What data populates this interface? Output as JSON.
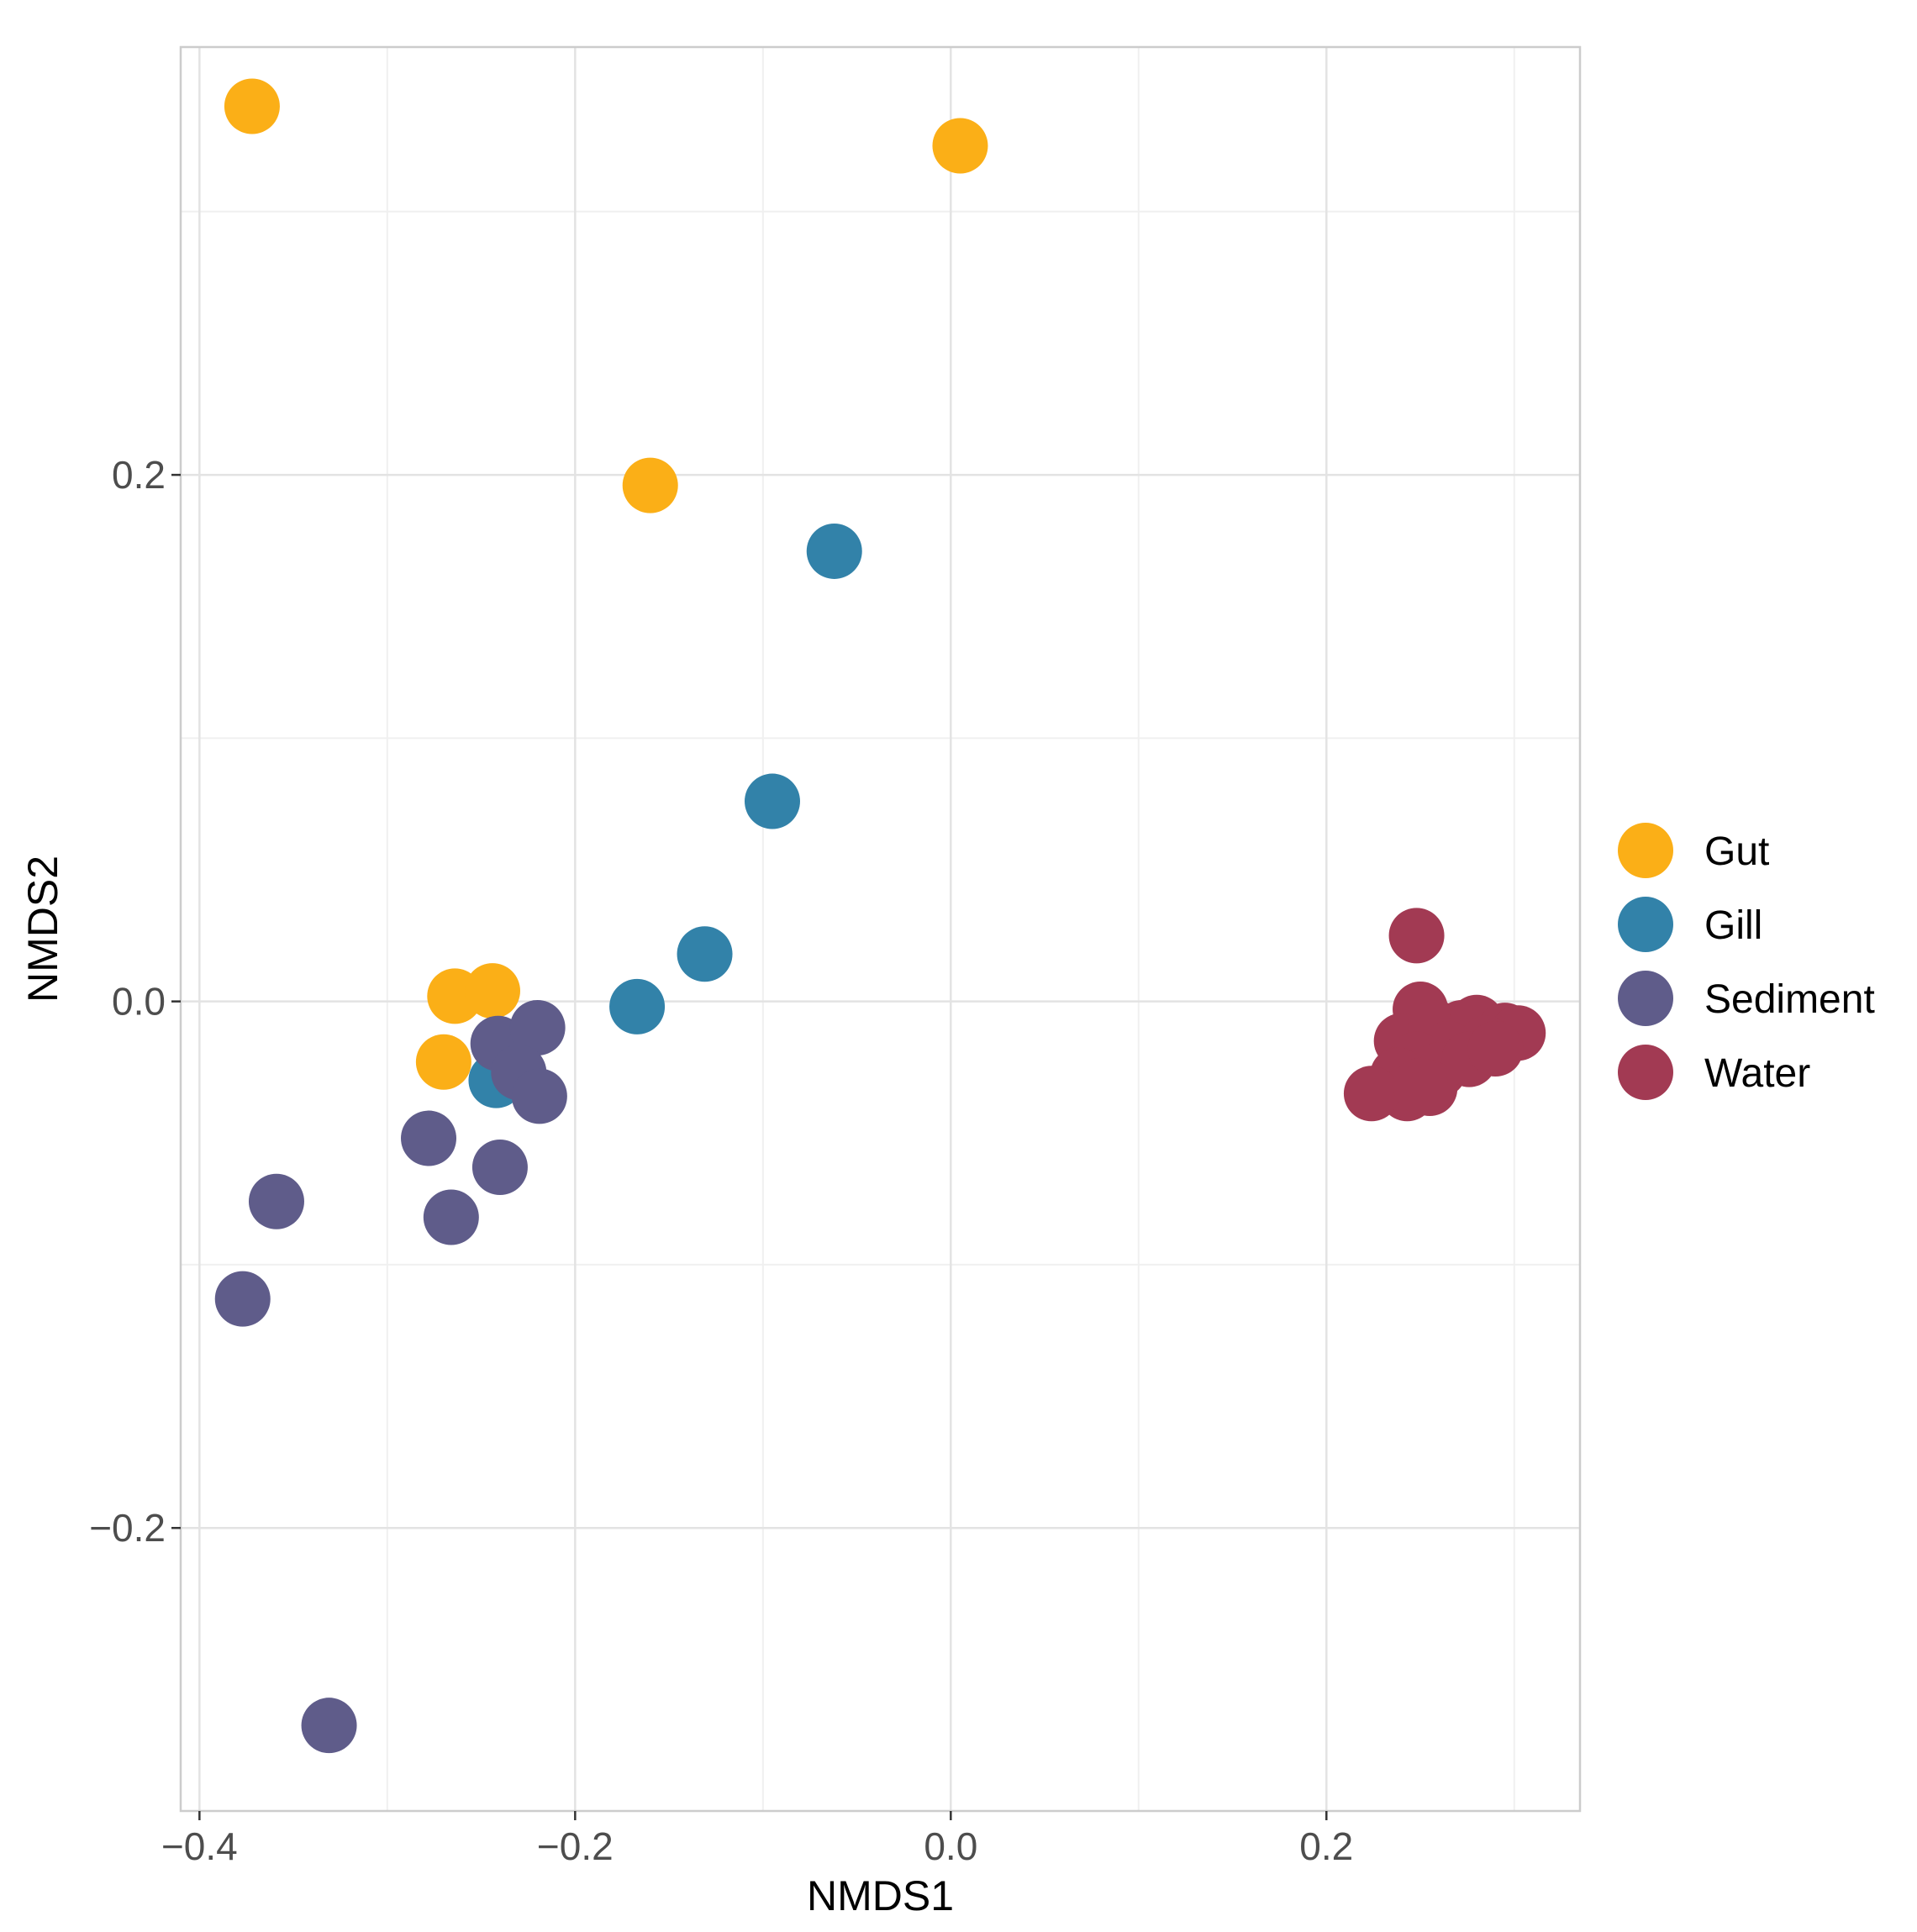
{
  "chart_data": {
    "type": "scatter",
    "title": "",
    "xlabel": "NMDS1",
    "ylabel": "NMDS2",
    "xlim": [
      -0.41,
      0.335
    ],
    "ylim": [
      -0.3075,
      0.3625
    ],
    "x_ticks": [
      -0.4,
      -0.2,
      0.0,
      0.2
    ],
    "x_tick_labels": [
      "−0.4",
      "−0.2",
      "0.0",
      "0.2"
    ],
    "y_ticks": [
      -0.2,
      0.0,
      0.2
    ],
    "y_tick_labels": [
      "−0.2",
      "0.0",
      "0.2"
    ],
    "x_minor_ticks": [
      -0.3,
      -0.1,
      0.1,
      0.3
    ],
    "y_minor_ticks": [
      -0.1,
      0.1,
      0.3
    ],
    "grid": true,
    "legend_position": "right",
    "series": [
      {
        "name": "Gut",
        "color": "#FBAF17",
        "points": [
          {
            "x": -0.372,
            "y": 0.34
          },
          {
            "x": 0.005,
            "y": 0.325
          },
          {
            "x": -0.16,
            "y": 0.196
          },
          {
            "x": -0.264,
            "y": 0.002
          },
          {
            "x": -0.244,
            "y": 0.004
          },
          {
            "x": -0.27,
            "y": -0.023
          }
        ]
      },
      {
        "name": "Gill",
        "color": "#3282A9",
        "points": [
          {
            "x": -0.062,
            "y": 0.171
          },
          {
            "x": -0.095,
            "y": 0.076
          },
          {
            "x": -0.131,
            "y": 0.018
          },
          {
            "x": -0.167,
            "y": -0.002
          },
          {
            "x": -0.242,
            "y": -0.03
          }
        ]
      },
      {
        "name": "Sediment",
        "color": "#5F5C8A",
        "points": [
          {
            "x": -0.241,
            "y": -0.016
          },
          {
            "x": -0.22,
            "y": -0.01
          },
          {
            "x": -0.23,
            "y": -0.027
          },
          {
            "x": -0.219,
            "y": -0.036
          },
          {
            "x": -0.278,
            "y": -0.052
          },
          {
            "x": -0.24,
            "y": -0.063
          },
          {
            "x": -0.359,
            "y": -0.076
          },
          {
            "x": -0.266,
            "y": -0.082
          },
          {
            "x": -0.377,
            "y": -0.113
          },
          {
            "x": -0.331,
            "y": -0.275
          }
        ]
      },
      {
        "name": "Water",
        "color": "#A23A53",
        "points": [
          {
            "x": 0.248,
            "y": 0.025
          },
          {
            "x": 0.25,
            "y": -0.003
          },
          {
            "x": 0.24,
            "y": -0.015
          },
          {
            "x": 0.258,
            "y": -0.01
          },
          {
            "x": 0.272,
            "y": -0.01
          },
          {
            "x": 0.28,
            "y": -0.008
          },
          {
            "x": 0.295,
            "y": -0.011
          },
          {
            "x": 0.302,
            "y": -0.012
          },
          {
            "x": 0.285,
            "y": -0.016
          },
          {
            "x": 0.265,
            "y": -0.018
          },
          {
            "x": 0.248,
            "y": -0.022
          },
          {
            "x": 0.238,
            "y": -0.028
          },
          {
            "x": 0.26,
            "y": -0.026
          },
          {
            "x": 0.276,
            "y": -0.022
          },
          {
            "x": 0.29,
            "y": -0.018
          },
          {
            "x": 0.255,
            "y": -0.033
          },
          {
            "x": 0.243,
            "y": -0.035
          },
          {
            "x": 0.224,
            "y": -0.035
          },
          {
            "x": 0.25,
            "y": -0.032
          }
        ]
      }
    ]
  }
}
